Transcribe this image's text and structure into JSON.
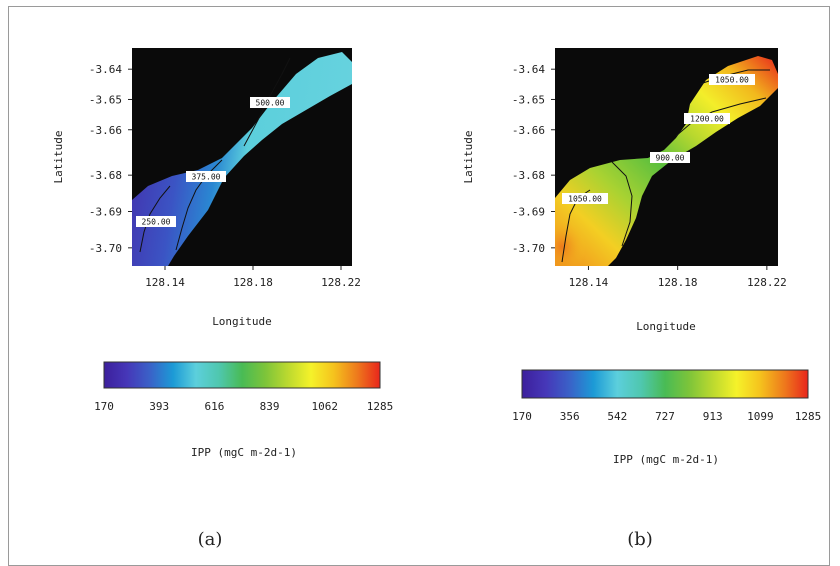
{
  "chart_data": [
    {
      "type": "heatmap",
      "panel_label": "(a)",
      "xlabel": "Longitude",
      "ylabel": "Latitude",
      "xlim": [
        128.125,
        128.225
      ],
      "ylim": [
        -3.705,
        -3.633
      ],
      "x_ticks": [
        "128.14",
        "128.18",
        "128.22"
      ],
      "x_tick_values": [
        128.14,
        128.18,
        128.22
      ],
      "y_ticks": [
        "-3.64",
        "-3.65",
        "-3.66",
        "-3.68",
        "-3.69",
        "-3.70"
      ],
      "y_tick_values": [
        -3.64,
        -3.65,
        -3.66,
        -3.675,
        -3.687,
        -3.699
      ],
      "background_color": "#0a0a0a",
      "contours": [
        {
          "label": "500.00",
          "value": 500
        },
        {
          "label": "375.00",
          "value": 375
        },
        {
          "label": "250.00",
          "value": 250
        }
      ],
      "colorbar": {
        "label": "IPP (mgC m-2d-1)",
        "ticks": [
          "170",
          "393",
          "616",
          "839",
          "1062",
          "1285"
        ],
        "min": 170,
        "max": 1285
      }
    },
    {
      "type": "heatmap",
      "panel_label": "(b)",
      "xlabel": "Longitude",
      "ylabel": "Latitude",
      "xlim": [
        128.125,
        128.225
      ],
      "ylim": [
        -3.705,
        -3.633
      ],
      "x_ticks": [
        "128.14",
        "128.18",
        "128.22"
      ],
      "x_tick_values": [
        128.14,
        128.18,
        128.22
      ],
      "y_ticks": [
        "-3.64",
        "-3.65",
        "-3.66",
        "-3.68",
        "-3.69",
        "-3.70"
      ],
      "y_tick_values": [
        -3.64,
        -3.65,
        -3.66,
        -3.675,
        -3.687,
        -3.699
      ],
      "background_color": "#0a0a0a",
      "contours": [
        {
          "label": "1050.00",
          "value": 1050
        },
        {
          "label": "1200.00",
          "value": 1200
        },
        {
          "label": "900.00",
          "value": 900
        },
        {
          "label": "1050.00",
          "value": 1050
        }
      ],
      "colorbar": {
        "label": "IPP (mgC m-2d-1)",
        "ticks": [
          "170",
          "356",
          "542",
          "727",
          "913",
          "1099",
          "1285"
        ],
        "min": 170,
        "max": 1285
      }
    }
  ],
  "colormap": [
    "#3c1f9c",
    "#4637b8",
    "#3a62c8",
    "#1c9ad6",
    "#5ccfdc",
    "#4fc7ae",
    "#49bb55",
    "#7cc43a",
    "#bcd92f",
    "#f5f22a",
    "#f5c21d",
    "#ee7a1c",
    "#e8261c"
  ]
}
